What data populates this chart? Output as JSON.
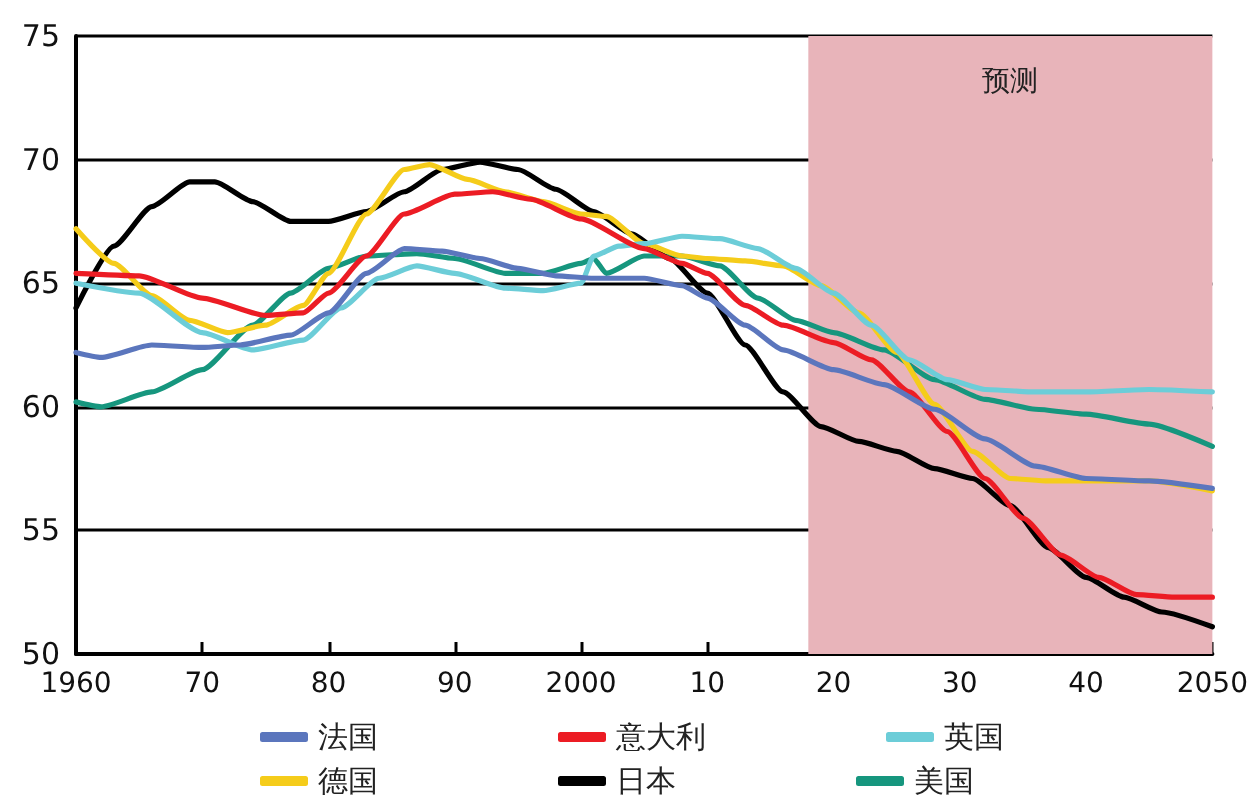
{
  "chart_data": {
    "type": "line",
    "xlim": [
      1960,
      2050
    ],
    "xticks": [
      1960,
      {
        "value": 1970,
        "label": "70"
      },
      {
        "value": 1980,
        "label": "80"
      },
      {
        "value": 1990,
        "label": "90"
      },
      2000,
      {
        "value": 2010,
        "label": "10"
      },
      {
        "value": 2020,
        "label": "20"
      },
      {
        "value": 2030,
        "label": "30"
      },
      {
        "value": 2040,
        "label": "40"
      },
      2050
    ],
    "ylim": [
      50,
      75
    ],
    "yticks": [
      50,
      55,
      60,
      65,
      70,
      75
    ],
    "grid": "y",
    "legend": "bottom",
    "marker": "none",
    "line_style": "solid",
    "bands": [
      {
        "axis": "x",
        "from": 2018,
        "to": 2050,
        "label": "预测",
        "color": "#e8b4ba"
      }
    ],
    "series": [
      {
        "name": "法国",
        "color": "#5b76bd",
        "x": [
          1960,
          1962,
          1966,
          1970,
          1973,
          1977,
          1980,
          1983,
          1986,
          1989,
          1992,
          1995,
          1998,
          2001,
          2005,
          2008,
          2010,
          2013,
          2016,
          2020,
          2024,
          2028,
          2032,
          2036,
          2040,
          2045,
          2050
        ],
        "values": [
          62.2,
          62.0,
          62.5,
          62.4,
          62.5,
          62.9,
          63.8,
          65.4,
          66.4,
          66.3,
          66.0,
          65.6,
          65.3,
          65.2,
          65.2,
          64.9,
          64.4,
          63.3,
          62.3,
          61.5,
          60.9,
          59.9,
          58.7,
          57.6,
          57.1,
          57.0,
          56.7
        ]
      },
      {
        "name": "意大利",
        "color": "#ec1c24",
        "x": [
          1960,
          1965,
          1970,
          1975,
          1978,
          1980,
          1983,
          1986,
          1990,
          1993,
          1996,
          2000,
          2005,
          2008,
          2010,
          2013,
          2016,
          2020,
          2023,
          2026,
          2029,
          2032,
          2035,
          2038,
          2041,
          2044,
          2047,
          2050
        ],
        "values": [
          65.4,
          65.3,
          64.4,
          63.7,
          63.8,
          64.6,
          66.1,
          67.8,
          68.6,
          68.7,
          68.4,
          67.6,
          66.4,
          65.8,
          65.4,
          64.1,
          63.3,
          62.6,
          61.9,
          60.6,
          59.0,
          57.1,
          55.5,
          54.0,
          53.1,
          52.4,
          52.3,
          52.3
        ]
      },
      {
        "name": "英国",
        "color": "#6ccdd8",
        "x": [
          1960,
          1965,
          1970,
          1974,
          1978,
          1981,
          1984,
          1987,
          1990,
          1994,
          1997,
          2000,
          2001,
          2003,
          2005,
          2008,
          2011,
          2014,
          2017,
          2020,
          2023,
          2026,
          2029,
          2032,
          2036,
          2040,
          2045,
          2050
        ],
        "values": [
          65.0,
          64.6,
          63.0,
          62.3,
          62.7,
          64.0,
          65.2,
          65.7,
          65.4,
          64.8,
          64.7,
          65.0,
          66.1,
          66.5,
          66.6,
          66.9,
          66.8,
          66.4,
          65.6,
          64.6,
          63.3,
          61.9,
          61.1,
          60.7,
          60.6,
          60.6,
          60.7,
          60.6
        ]
      },
      {
        "name": "德国",
        "color": "#f5cc1a",
        "x": [
          1960,
          1963,
          1966,
          1969,
          1972,
          1975,
          1978,
          1980,
          1983,
          1986,
          1988,
          1991,
          1994,
          1997,
          2000,
          2002,
          2005,
          2008,
          2010,
          2013,
          2016,
          2019,
          2022,
          2025,
          2028,
          2031,
          2034,
          2037,
          2040,
          2045,
          2050
        ],
        "values": [
          67.2,
          65.8,
          64.5,
          63.5,
          63.0,
          63.3,
          64.1,
          65.4,
          67.8,
          69.6,
          69.8,
          69.2,
          68.7,
          68.3,
          67.8,
          67.7,
          66.6,
          66.1,
          66.0,
          65.9,
          65.7,
          64.9,
          63.8,
          62.2,
          60.1,
          58.2,
          57.1,
          57.0,
          57.0,
          57.0,
          56.6
        ]
      },
      {
        "name": "日本",
        "color": "#000000",
        "x": [
          1960,
          1963,
          1966,
          1969,
          1971,
          1974,
          1977,
          1980,
          1983,
          1986,
          1989,
          1992,
          1995,
          1998,
          2001,
          2004,
          2007,
          2010,
          2013,
          2016,
          2019,
          2022,
          2025,
          2028,
          2031,
          2034,
          2037,
          2040,
          2043,
          2046,
          2050
        ],
        "values": [
          64.0,
          66.5,
          68.1,
          69.1,
          69.1,
          68.3,
          67.5,
          67.5,
          67.9,
          68.7,
          69.6,
          69.9,
          69.6,
          68.8,
          67.9,
          67.0,
          66.0,
          64.6,
          62.5,
          60.6,
          59.2,
          58.6,
          58.2,
          57.5,
          57.1,
          56.0,
          54.3,
          53.1,
          52.3,
          51.7,
          51.1
        ]
      },
      {
        "name": "美国",
        "color": "#16967e",
        "x": [
          1960,
          1962,
          1966,
          1970,
          1974,
          1977,
          1980,
          1983,
          1987,
          1990,
          1994,
          1997,
          2000,
          2001,
          2002,
          2005,
          2008,
          2011,
          2014,
          2017,
          2020,
          2024,
          2028,
          2032,
          2036,
          2040,
          2045,
          2050
        ],
        "values": [
          60.2,
          60.0,
          60.6,
          61.5,
          63.3,
          64.6,
          65.6,
          66.1,
          66.2,
          66.0,
          65.4,
          65.4,
          65.8,
          66.0,
          65.4,
          66.1,
          66.1,
          65.7,
          64.4,
          63.5,
          63.0,
          62.3,
          61.1,
          60.3,
          59.9,
          59.7,
          59.3,
          58.4
        ]
      }
    ]
  }
}
